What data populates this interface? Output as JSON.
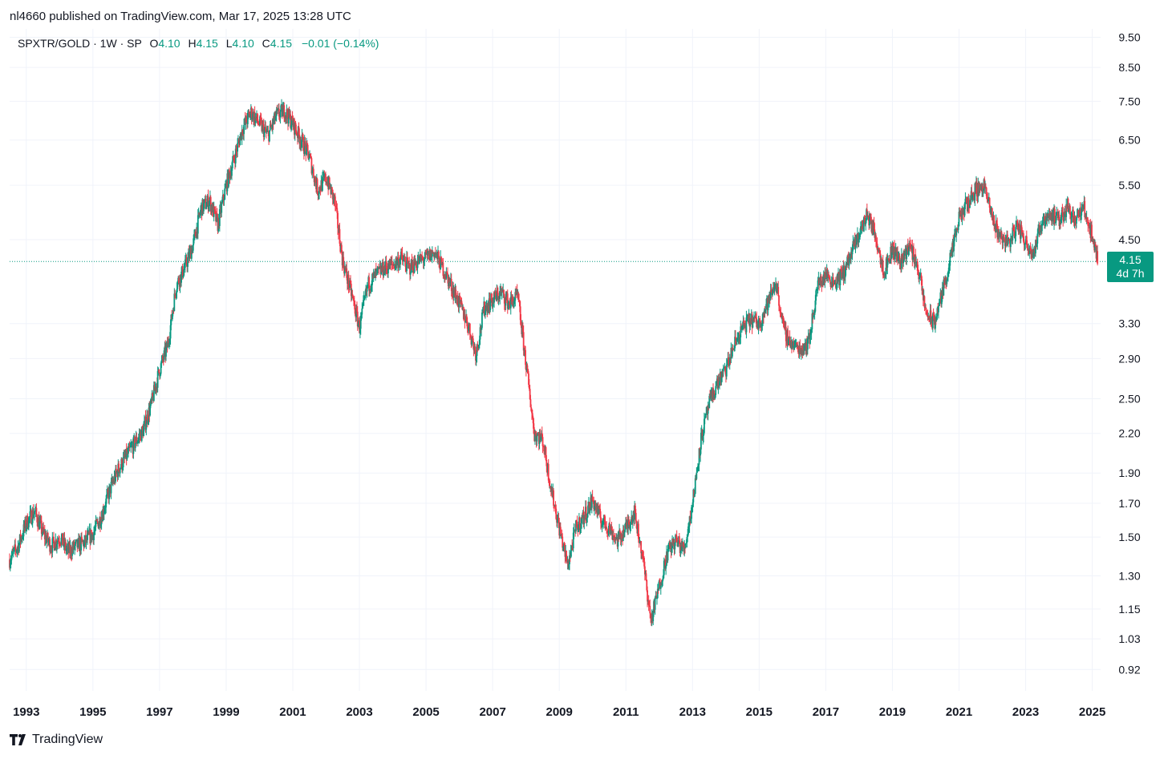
{
  "publisher_text": "nl4660 published on TradingView.com, Mar 17, 2025 13:28 UTC",
  "legend": {
    "symbol": "SPXTR/GOLD · 1W · SP",
    "o_label": "O",
    "o_value": "4.10",
    "h_label": "H",
    "h_value": "4.15",
    "l_label": "L",
    "l_value": "4.10",
    "c_label": "C",
    "c_value": "4.15",
    "change": "−0.01 (−0.14%)"
  },
  "price_tag": {
    "price": "4.15",
    "countdown": "4d 7h"
  },
  "brand": {
    "name": "TradingView"
  },
  "colors": {
    "up": "#089981",
    "down": "#f23645",
    "grid": "#f0f3fa",
    "text": "#131722"
  },
  "chart_data": {
    "type": "candlestick",
    "title": "SPXTR/GOLD · 1W · SP",
    "y_scale": "log",
    "ylim": [
      0.85,
      9.8
    ],
    "x_range": [
      "1992-07",
      "2025-04"
    ],
    "grid": true,
    "y_ticks": [
      "9.50",
      "8.50",
      "7.50",
      "6.50",
      "5.50",
      "4.50",
      "3.30",
      "2.90",
      "2.50",
      "2.20",
      "1.90",
      "1.70",
      "1.50",
      "1.30",
      "1.15",
      "1.03",
      "0.92"
    ],
    "x_ticks": [
      "1993",
      "1995",
      "1997",
      "1999",
      "2001",
      "2003",
      "2005",
      "2007",
      "2009",
      "2011",
      "2013",
      "2015",
      "2017",
      "2019",
      "2021",
      "2023",
      "2025"
    ],
    "last_price": 4.15,
    "series": [
      {
        "x": [
          "1992-07",
          "1992-10",
          "1993-01",
          "1993-04",
          "1993-07",
          "1993-10",
          "1994-01",
          "1994-04",
          "1994-07",
          "1994-10",
          "1995-01",
          "1995-04",
          "1995-07",
          "1995-10",
          "1996-01",
          "1996-04",
          "1996-07",
          "1996-10",
          "1997-01",
          "1997-04",
          "1997-07",
          "1997-10",
          "1998-01",
          "1998-04",
          "1998-07",
          "1998-10",
          "1999-01",
          "1999-04",
          "1999-07",
          "1999-10",
          "2000-01",
          "2000-04",
          "2000-07",
          "2000-10",
          "2001-01",
          "2001-04",
          "2001-07",
          "2001-10",
          "2002-01",
          "2002-04",
          "2002-07",
          "2002-10",
          "2003-01",
          "2003-04",
          "2003-07",
          "2003-10",
          "2004-01",
          "2004-04",
          "2004-07",
          "2004-10",
          "2005-01",
          "2005-04",
          "2005-07",
          "2005-10",
          "2006-01",
          "2006-04",
          "2006-07",
          "2006-10",
          "2007-01",
          "2007-04",
          "2007-07",
          "2007-10",
          "2008-01",
          "2008-04",
          "2008-07",
          "2008-10",
          "2009-01",
          "2009-04",
          "2009-07",
          "2009-10",
          "2010-01",
          "2010-04",
          "2010-07",
          "2010-10",
          "2011-01",
          "2011-04",
          "2011-07",
          "2011-10",
          "2012-01",
          "2012-04",
          "2012-07",
          "2012-10",
          "2013-01",
          "2013-04",
          "2013-07",
          "2013-10",
          "2014-01",
          "2014-04",
          "2014-07",
          "2014-10",
          "2015-01",
          "2015-04",
          "2015-07",
          "2015-10",
          "2016-01",
          "2016-04",
          "2016-07",
          "2016-10",
          "2017-01",
          "2017-04",
          "2017-07",
          "2017-10",
          "2018-01",
          "2018-04",
          "2018-07",
          "2018-10",
          "2019-01",
          "2019-04",
          "2019-07",
          "2019-10",
          "2020-01",
          "2020-04",
          "2020-07",
          "2020-10",
          "2021-01",
          "2021-04",
          "2021-07",
          "2021-10",
          "2022-01",
          "2022-04",
          "2022-07",
          "2022-10",
          "2023-01",
          "2023-04",
          "2023-07",
          "2023-10",
          "2024-01",
          "2024-04",
          "2024-07",
          "2024-10",
          "2025-01",
          "2025-03"
        ],
        "close": [
          1.38,
          1.45,
          1.58,
          1.65,
          1.52,
          1.45,
          1.5,
          1.42,
          1.45,
          1.47,
          1.52,
          1.62,
          1.78,
          1.92,
          2.02,
          2.12,
          2.22,
          2.45,
          2.78,
          3.05,
          3.8,
          4.05,
          4.4,
          5.05,
          5.2,
          4.75,
          5.5,
          6.1,
          6.8,
          7.2,
          6.9,
          6.6,
          7.1,
          7.25,
          6.9,
          6.5,
          6.1,
          5.4,
          5.65,
          5.2,
          4.15,
          3.7,
          3.25,
          3.8,
          3.95,
          4.05,
          4.1,
          4.2,
          4.05,
          4.15,
          4.2,
          4.3,
          4.05,
          3.8,
          3.55,
          3.3,
          2.95,
          3.5,
          3.6,
          3.7,
          3.55,
          3.65,
          2.85,
          2.2,
          2.15,
          1.8,
          1.55,
          1.35,
          1.55,
          1.62,
          1.72,
          1.6,
          1.55,
          1.48,
          1.55,
          1.65,
          1.4,
          1.1,
          1.25,
          1.42,
          1.48,
          1.43,
          1.7,
          2.15,
          2.45,
          2.65,
          2.78,
          3.05,
          3.25,
          3.35,
          3.3,
          3.55,
          3.85,
          3.2,
          3.05,
          3.0,
          3.1,
          3.8,
          3.95,
          3.85,
          3.95,
          4.25,
          4.6,
          4.95,
          4.55,
          4.0,
          4.35,
          4.15,
          4.4,
          4.1,
          3.45,
          3.3,
          3.7,
          4.2,
          4.85,
          5.15,
          5.4,
          5.5,
          4.85,
          4.55,
          4.45,
          4.75,
          4.45,
          4.3,
          4.85,
          4.95,
          4.8,
          5.1,
          4.85,
          5.05,
          4.55,
          4.15
        ]
      }
    ]
  }
}
